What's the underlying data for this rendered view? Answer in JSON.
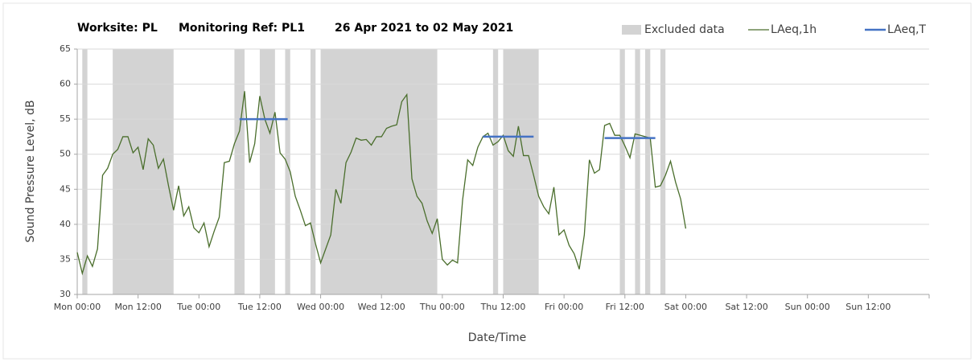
{
  "chart_data": {
    "type": "line",
    "title": [
      "Worksite: PL",
      "Monitoring Ref: PL1",
      "26 Apr 2021 to 02 May 2021"
    ],
    "xlabel": "Date/Time",
    "ylabel": "Sound Pressure Level, dB",
    "xlim": [
      0,
      168
    ],
    "xticks": [
      {
        "value": 0,
        "label": "Mon 00:00"
      },
      {
        "value": 12,
        "label": "Mon 12:00"
      },
      {
        "value": 24,
        "label": "Tue 00:00"
      },
      {
        "value": 36,
        "label": "Tue 12:00"
      },
      {
        "value": 48,
        "label": "Wed 00:00"
      },
      {
        "value": 60,
        "label": "Wed 12:00"
      },
      {
        "value": 72,
        "label": "Thu 00:00"
      },
      {
        "value": 84,
        "label": "Thu 12:00"
      },
      {
        "value": 96,
        "label": "Fri 00:00"
      },
      {
        "value": 108,
        "label": "Fri 12:00"
      },
      {
        "value": 120,
        "label": "Sat 00:00"
      },
      {
        "value": 132,
        "label": "Sat 12:00"
      },
      {
        "value": 144,
        "label": "Sun 00:00"
      },
      {
        "value": 156,
        "label": "Sun 12:00"
      }
    ],
    "ylim": [
      30,
      65
    ],
    "yticks": [
      30,
      35,
      40,
      45,
      50,
      55,
      60,
      65
    ],
    "grid": true,
    "legend": "top-right",
    "series": [
      {
        "name": "Excluded data",
        "kind": "band",
        "color": "#d3d3d3",
        "ranges": [
          [
            1,
            2
          ],
          [
            7,
            19
          ],
          [
            31,
            33
          ],
          [
            36,
            39
          ],
          [
            41,
            42
          ],
          [
            46,
            47
          ],
          [
            48,
            71
          ],
          [
            82,
            83
          ],
          [
            84,
            91
          ],
          [
            107,
            108
          ],
          [
            110,
            111
          ],
          [
            112,
            113
          ],
          [
            115,
            116
          ]
        ]
      },
      {
        "name": "LAeq,1h",
        "kind": "line",
        "color": "#4a6e2c",
        "x": [
          0,
          1,
          2,
          3,
          4,
          5,
          6,
          7,
          8,
          9,
          10,
          11,
          12,
          13,
          14,
          15,
          16,
          17,
          18,
          19,
          20,
          21,
          22,
          23,
          24,
          25,
          26,
          27,
          28,
          29,
          30,
          31,
          32,
          33,
          34,
          35,
          36,
          37,
          38,
          39,
          40,
          41,
          42,
          43,
          44,
          45,
          46,
          47,
          48,
          49,
          50,
          51,
          52,
          53,
          54,
          55,
          56,
          57,
          58,
          59,
          60,
          61,
          62,
          63,
          64,
          65,
          66,
          67,
          68,
          69,
          70,
          71,
          72,
          73,
          74,
          75,
          76,
          77,
          78,
          79,
          80,
          81,
          82,
          83,
          84,
          85,
          86,
          87,
          88,
          89,
          90,
          91,
          92,
          93,
          94,
          95,
          96,
          97,
          98,
          99,
          100,
          101,
          102,
          103,
          104,
          105,
          106,
          107,
          108,
          109,
          110,
          111,
          112,
          113,
          114,
          115,
          116,
          117,
          118,
          119,
          120
        ],
        "values": [
          36,
          33,
          35.5,
          34,
          36.5,
          47,
          48,
          50,
          50.7,
          52.5,
          52.5,
          50.2,
          51,
          47.8,
          52.2,
          51.3,
          48,
          49.3,
          45.5,
          42,
          45.5,
          41.2,
          42.5,
          39.5,
          38.8,
          40.2,
          36.8,
          39,
          41,
          48.8,
          49,
          51.5,
          53.3,
          59,
          48.8,
          51.5,
          58.3,
          55,
          53,
          56,
          50.2,
          49.3,
          47.5,
          44,
          42,
          39.8,
          40.2,
          37.2,
          34.5,
          36.5,
          38.5,
          45,
          43,
          48.8,
          50.3,
          52.3,
          52,
          52.1,
          51.3,
          52.5,
          52.5,
          53.7,
          54,
          54.2,
          57.5,
          58.5,
          46.5,
          44,
          43,
          40.5,
          38.7,
          40.8,
          35,
          34.2,
          34.9,
          34.5,
          43.5,
          49.2,
          48.4,
          51,
          52.5,
          53,
          51.3,
          51.8,
          52.7,
          50.5,
          49.7,
          54,
          49.8,
          49.8,
          47,
          44,
          42.5,
          41.5,
          45.3,
          38.5,
          39.2,
          37,
          35.8,
          33.6,
          38.5,
          49.2,
          47.3,
          47.8,
          54.1,
          54.4,
          52.7,
          52.7,
          51.2,
          49.5,
          52.9,
          52.7,
          52.5,
          52.3,
          45.3,
          45.5,
          47,
          49,
          46,
          43.6,
          39.4
        ]
      },
      {
        "name": "LAeq,T",
        "kind": "segments",
        "color": "#4472c4",
        "segments": [
          {
            "x": [
              32,
              41.5
            ],
            "value": 55
          },
          {
            "x": [
              80,
              90
            ],
            "value": 52.5
          },
          {
            "x": [
              104,
              114
            ],
            "value": 52.3
          }
        ]
      }
    ]
  }
}
